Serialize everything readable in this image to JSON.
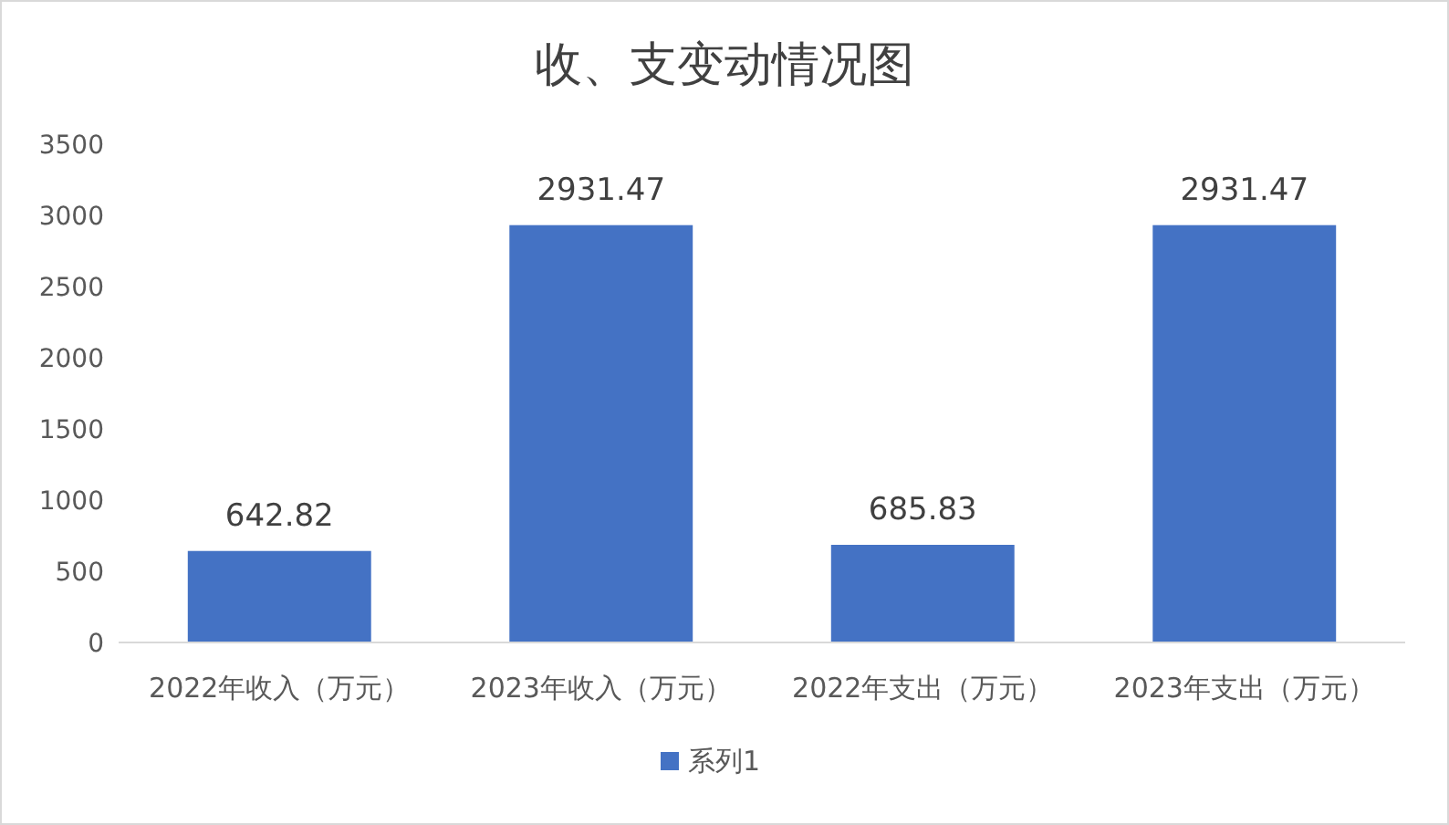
{
  "chart_data": {
    "type": "bar",
    "title": "收、支变动情况图",
    "categories": [
      "2022年收入（万元）",
      "2023年收入（万元）",
      "2022年支出（万元）",
      "2023年支出（万元）"
    ],
    "series": [
      {
        "name": "系列1",
        "color": "#4472c4",
        "values": [
          642.82,
          2931.47,
          685.83,
          2931.47
        ]
      }
    ],
    "ylim": [
      0,
      3500
    ],
    "yticks": [
      0,
      500,
      1000,
      1500,
      2000,
      2500,
      3000,
      3500
    ],
    "data_labels": true,
    "legend": "bottom"
  }
}
